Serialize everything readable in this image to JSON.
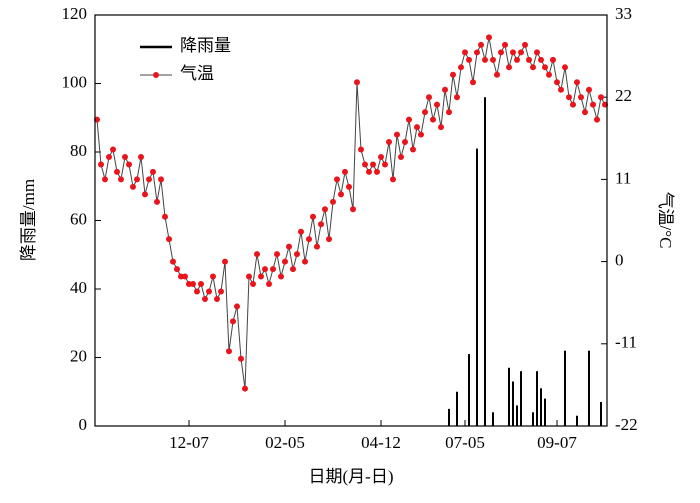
{
  "chart_data": {
    "type": "bar",
    "xlabel": "日期(月-日)",
    "ylabel": "降雨量/mm",
    "y2label": "气温/°C",
    "categories": [
      null,
      null,
      null,
      null,
      null,
      null,
      null,
      null,
      null,
      null,
      null,
      null,
      null,
      null,
      null,
      null,
      null,
      null,
      null,
      null,
      null,
      null,
      null,
      "12-07",
      null,
      null,
      null,
      null,
      null,
      null,
      null,
      null,
      null,
      null,
      null,
      null,
      null,
      null,
      null,
      null,
      null,
      null,
      null,
      null,
      null,
      null,
      null,
      "02-05",
      null,
      null,
      null,
      null,
      null,
      null,
      null,
      null,
      null,
      null,
      null,
      null,
      null,
      null,
      null,
      null,
      null,
      null,
      null,
      null,
      null,
      null,
      null,
      "04-12",
      null,
      null,
      null,
      null,
      null,
      null,
      null,
      null,
      null,
      null,
      null,
      null,
      null,
      null,
      null,
      null,
      null,
      null,
      null,
      null,
      "07-05",
      null,
      null,
      null,
      null,
      null,
      null,
      null,
      null,
      null,
      null,
      null,
      null,
      null,
      null,
      null,
      null,
      null,
      null,
      null,
      null,
      null,
      null,
      "09-07",
      null,
      null,
      null,
      null,
      null,
      null,
      null,
      null,
      null,
      null,
      null,
      null
    ],
    "series": [
      {
        "name": "降雨量",
        "type": "bar",
        "color": "#000000",
        "values": [
          0,
          0,
          0,
          0,
          0,
          0,
          0,
          0,
          0,
          0,
          0,
          0,
          0,
          0,
          0,
          0,
          0,
          0,
          0,
          0,
          0,
          0,
          0,
          0,
          0,
          0,
          0,
          0,
          0,
          0,
          0,
          0,
          0,
          0,
          0,
          0,
          0,
          0,
          0,
          0,
          0,
          0,
          0,
          0,
          0,
          0,
          0,
          0,
          0,
          0,
          0,
          0,
          0,
          0,
          0,
          0,
          0,
          0,
          0,
          0,
          0,
          0,
          0,
          0,
          0,
          0,
          0,
          0,
          0,
          0,
          0,
          0,
          0,
          0,
          0,
          0,
          0,
          0,
          0,
          0,
          0,
          0,
          0,
          0,
          0,
          0,
          0,
          0,
          5,
          0,
          10,
          0,
          0,
          21,
          0,
          81,
          0,
          96,
          0,
          4,
          0,
          0,
          0,
          17,
          13,
          6,
          16,
          0,
          0,
          4,
          16,
          11,
          8,
          0,
          0,
          0,
          0,
          22,
          0,
          0,
          3,
          0,
          0,
          22,
          0,
          0,
          7,
          0
        ]
      },
      {
        "name": "气温",
        "type": "line",
        "axis": "y2",
        "color": "#e8161b",
        "values": [
          19,
          13,
          11,
          14,
          15,
          12,
          11,
          14,
          13,
          10,
          11,
          14,
          9,
          11,
          12,
          8,
          11,
          6,
          3,
          0,
          -1,
          -2,
          -2,
          -3,
          -3,
          -4,
          -3,
          -5,
          -4,
          -2,
          -5,
          -4,
          0,
          -12,
          -8,
          -6,
          -13,
          -17,
          -2,
          -3,
          1,
          -2,
          -1,
          -3,
          -1,
          1,
          -2,
          0,
          2,
          -1,
          1,
          4,
          0,
          3,
          6,
          2,
          5,
          7,
          3,
          8,
          11,
          9,
          12,
          10,
          7,
          24,
          15,
          13,
          12,
          13,
          12,
          14,
          13,
          16,
          11,
          17,
          14,
          16,
          19,
          15,
          18,
          17,
          20,
          22,
          19,
          21,
          18,
          23,
          20,
          25,
          22,
          26,
          28,
          27,
          24,
          28,
          29,
          27,
          30,
          27,
          25,
          28,
          29,
          26,
          28,
          27,
          28,
          29,
          27,
          26,
          28,
          27,
          26,
          25,
          27,
          24,
          23,
          26,
          22,
          21,
          24,
          22,
          20,
          23,
          21,
          19,
          22,
          21
        ]
      }
    ],
    "ylim": [
      0,
      120
    ],
    "yticks": [
      0,
      20,
      40,
      60,
      80,
      100,
      120
    ],
    "y2lim": [
      -22,
      33
    ],
    "y2ticks": [
      -22,
      -11,
      0,
      11,
      22,
      33
    ],
    "legend": "upper left"
  }
}
